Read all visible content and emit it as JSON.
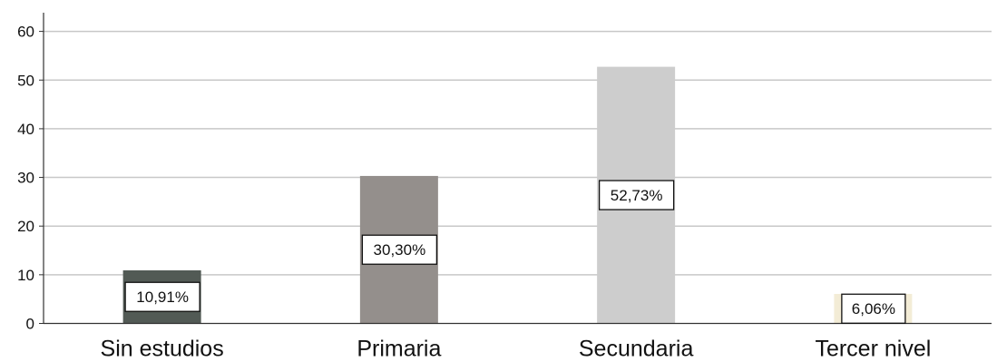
{
  "chart_data": {
    "type": "bar",
    "title": "",
    "xlabel": "",
    "ylabel": "",
    "categories": [
      "Sin estudios",
      "Primaria",
      "Secundaria",
      "Tercer nivel"
    ],
    "values": [
      10.91,
      30.3,
      52.73,
      6.06
    ],
    "data_labels": [
      "10,91%",
      "30,30%",
      "52,73%",
      "6,06%"
    ],
    "colors": [
      "#525a55",
      "#948f8c",
      "#cdcdcd",
      "#f3ecd6"
    ],
    "ylim": [
      0,
      62
    ],
    "yticks": [
      0,
      10,
      20,
      30,
      40,
      50,
      60
    ],
    "grid": true,
    "legend": "none"
  }
}
